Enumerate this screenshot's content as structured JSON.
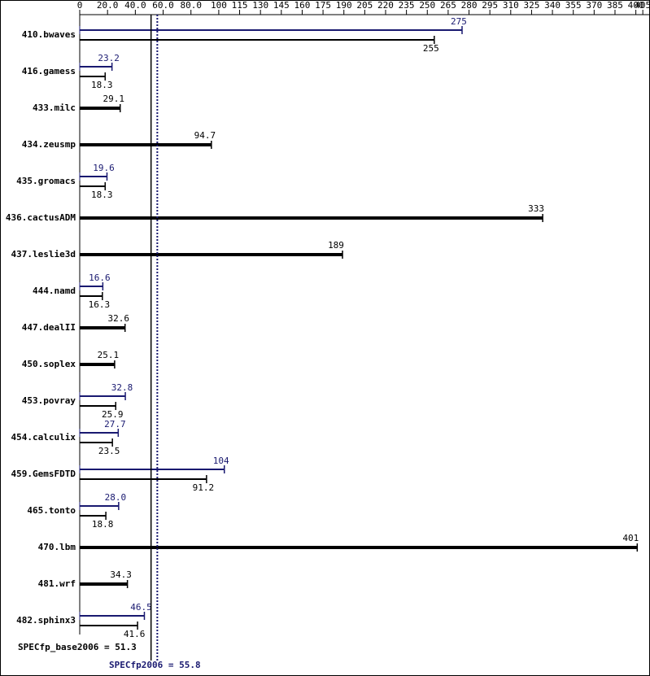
{
  "chart_data": {
    "type": "bar",
    "orientation": "horizontal",
    "categories": [
      "410.bwaves",
      "416.gamess",
      "433.milc",
      "434.zeusmp",
      "435.gromacs",
      "436.cactusADM",
      "437.leslie3d",
      "444.namd",
      "447.dealII",
      "450.soplex",
      "453.povray",
      "454.calculix",
      "459.GemsFDTD",
      "465.tonto",
      "470.lbm",
      "481.wrf",
      "482.sphinx3"
    ],
    "series": [
      {
        "color": "#191970",
        "values": [
          275,
          23.2,
          null,
          null,
          19.6,
          null,
          null,
          16.6,
          null,
          null,
          32.8,
          27.7,
          104,
          28.0,
          null,
          null,
          46.5
        ],
        "value_labels": [
          "275",
          "23.2",
          null,
          null,
          "19.6",
          null,
          null,
          "16.6",
          null,
          null,
          "32.8",
          "27.7",
          "104",
          "28.0",
          null,
          null,
          "46.5"
        ]
      },
      {
        "color": "#000000",
        "values": [
          255,
          18.3,
          29.1,
          94.7,
          18.3,
          333,
          189,
          16.3,
          32.6,
          25.1,
          25.9,
          23.5,
          91.2,
          18.8,
          401,
          34.3,
          41.6
        ],
        "value_labels": [
          "255",
          "18.3",
          "29.1",
          "94.7",
          "18.3",
          "333",
          "189",
          "16.3",
          "32.6",
          "25.1",
          "25.9",
          "23.5",
          "91.2",
          "18.8",
          "401",
          "34.3",
          "41.6"
        ]
      }
    ],
    "xlim": [
      0,
      410
    ],
    "xticks": [
      0,
      {
        "value": 20,
        "label": "20.0"
      },
      {
        "value": 40,
        "label": "40.0"
      },
      {
        "value": 60,
        "label": "60.0"
      },
      {
        "value": 80,
        "label": "80.0"
      },
      100,
      115,
      130,
      145,
      160,
      175,
      190,
      205,
      220,
      235,
      250,
      265,
      280,
      295,
      310,
      325,
      340,
      355,
      370,
      385,
      400,
      405
    ],
    "summary": [
      {
        "label": "SPECfp_base2006 = 51.3",
        "value": 51.3,
        "color": "#000000",
        "dashed": false
      },
      {
        "label": "SPECfp2006 = 55.8",
        "value": 55.8,
        "color": "#191970",
        "dashed": true
      }
    ]
  }
}
